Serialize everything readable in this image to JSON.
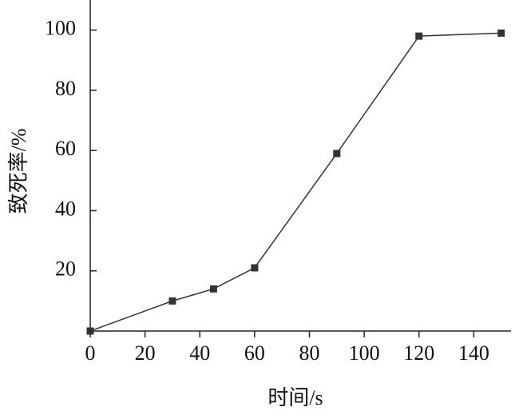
{
  "chart_data": {
    "type": "line",
    "x_label": "时间/s",
    "y_label": "致死率/%",
    "x": [
      0,
      30,
      45,
      60,
      90,
      120,
      150
    ],
    "values": [
      0,
      10,
      14,
      21,
      59,
      98,
      99
    ],
    "color": "#333333",
    "xlim": [
      0,
      153
    ],
    "xticks": [
      0,
      20,
      40,
      60,
      80,
      100,
      120,
      140
    ],
    "ylim": [
      0,
      110
    ],
    "yticks": [
      20,
      40,
      60,
      80,
      100
    ]
  }
}
